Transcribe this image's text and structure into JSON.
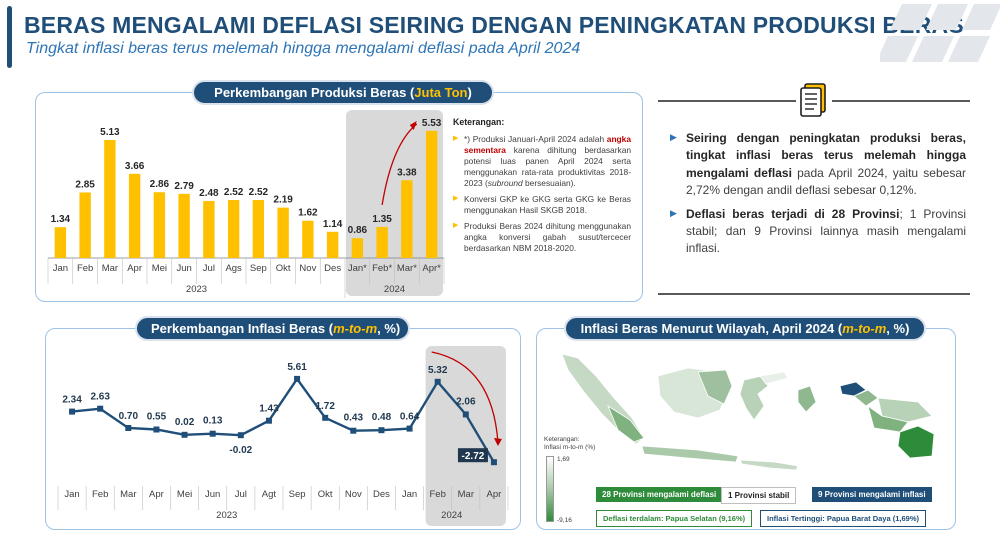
{
  "header": {
    "title": "BERAS MENGALAMI DEFLASI SEIRING DENGAN PENINGKATAN PRODUKSI BERAS",
    "subtitle": "Tingkat inflasi beras terus melemah hingga mengalami deflasi pada April 2024"
  },
  "production_panel": {
    "title_main": "Perkembangan Produksi Beras (",
    "title_unit": "Juta Ton",
    "title_end": ")",
    "year_2023": "2023",
    "year_2024": "2024"
  },
  "notes": {
    "heading": "Keterangan:",
    "item1_a": "*) Produksi Januari-April 2024 adalah",
    "item1_b": "angka sementara",
    "item1_c": "karena dihitung berdasarkan potensi luas panen April 2024 serta menggunakan rata-rata produktivitas 2018-2023 (",
    "item1_d": "subround",
    "item1_e": "bersesuaian).",
    "item2": "Konversi GKP ke GKG serta GKG ke Beras menggunakan Hasil SKGB 2018.",
    "item3": "Produksi Beras 2024 dihitung menggunakan angka konversi gabah susut/tercecer berdasarkan NBM 2018-2020."
  },
  "summary": {
    "p1_bold": "Seiring dengan peningkatan produksi beras, tingkat inflasi beras terus melemah hingga mengalami deflasi",
    "p1_rest": "pada April 2024, yaitu sebesar 2,72% dengan andil deflasi sebesar 0,12%.",
    "p2_bold": "Deflasi beras terjadi di 28 Provinsi",
    "p2_rest": "; 1 Provinsi stabil; dan 9 Provinsi lainnya masih mengalami inflasi."
  },
  "inflation_panel": {
    "title_main": "Perkembangan Inflasi Beras (",
    "title_unit": "m-to-m",
    "title_end": ", %)",
    "year_2023": "2023",
    "year_2024": "2024"
  },
  "map_panel": {
    "title_main": "Inflasi Beras Menurut Wilayah, April 2024 (",
    "title_unit": "m-to-m",
    "title_end": ", %)",
    "legend_title": "Keterangan:",
    "legend_subtitle": "Inflasi m-to-m (%)",
    "legend_max": "1,69",
    "legend_min": "-9,16",
    "box_deflasi": "28 Provinsi mengalami deflasi",
    "box_stabil": "1 Provinsi stabil",
    "box_inflasi": "9 Provinsi mengalami inflasi",
    "deflasi_terdalam": "Deflasi terdalam: Papua Selatan (9,16%)",
    "inflasi_tertinggi": "Inflasi Tertinggi: Papua Barat Daya (1,69%)"
  },
  "colors": {
    "navy": "#1f4e79",
    "bar": "#ffc000",
    "line": "#1f4e79",
    "green": "#2e8b3a",
    "arrow": "#c00000"
  },
  "chart_data": [
    {
      "type": "bar",
      "title": "Perkembangan Produksi Beras (Juta Ton)",
      "categories": [
        "Jan",
        "Feb",
        "Mar",
        "Apr",
        "Mei",
        "Jun",
        "Jul",
        "Ags",
        "Sep",
        "Okt",
        "Nov",
        "Des",
        "Jan*",
        "Feb*",
        "Mar*",
        "Apr*"
      ],
      "values": [
        1.34,
        2.85,
        5.13,
        3.66,
        2.86,
        2.79,
        2.48,
        2.52,
        2.52,
        2.19,
        1.62,
        1.14,
        0.86,
        1.35,
        3.38,
        5.53
      ],
      "labels": [
        "1.34",
        "2.85",
        "5.13",
        "3.66",
        "2.86",
        "2.79",
        "2.48",
        "2.52",
        "2.52",
        "2.19",
        "1.62",
        "1.14",
        "0.86",
        "1.35",
        "3.38",
        "5.53"
      ],
      "groups": [
        {
          "label": "2023",
          "from": 0,
          "to": 11
        },
        {
          "label": "2024",
          "from": 12,
          "to": 15
        }
      ],
      "ylim": [
        0,
        6
      ]
    },
    {
      "type": "line",
      "title": "Perkembangan Inflasi Beras (m-to-m, %)",
      "categories": [
        "Jan",
        "Feb",
        "Mar",
        "Apr",
        "Mei",
        "Jun",
        "Jul",
        "Agt",
        "Sep",
        "Okt",
        "Nov",
        "Des",
        "Jan",
        "Feb",
        "Mar",
        "Apr"
      ],
      "values": [
        2.34,
        2.63,
        0.7,
        0.55,
        0.02,
        0.13,
        -0.02,
        1.43,
        5.61,
        1.72,
        0.43,
        0.48,
        0.64,
        5.32,
        2.06,
        -2.72
      ],
      "labels": [
        "2.34",
        "2.63",
        "0.70",
        "0.55",
        "0.02",
        "0.13",
        "-0.02",
        "1.43",
        "5.61",
        "1.72",
        "0.43",
        "0.48",
        "0.64",
        "5.32",
        "2.06",
        "-2.72"
      ],
      "groups": [
        {
          "label": "2023",
          "from": 0,
          "to": 11
        },
        {
          "label": "2024",
          "from": 12,
          "to": 15
        }
      ],
      "ylim": [
        -3.5,
        6.5
      ]
    }
  ]
}
